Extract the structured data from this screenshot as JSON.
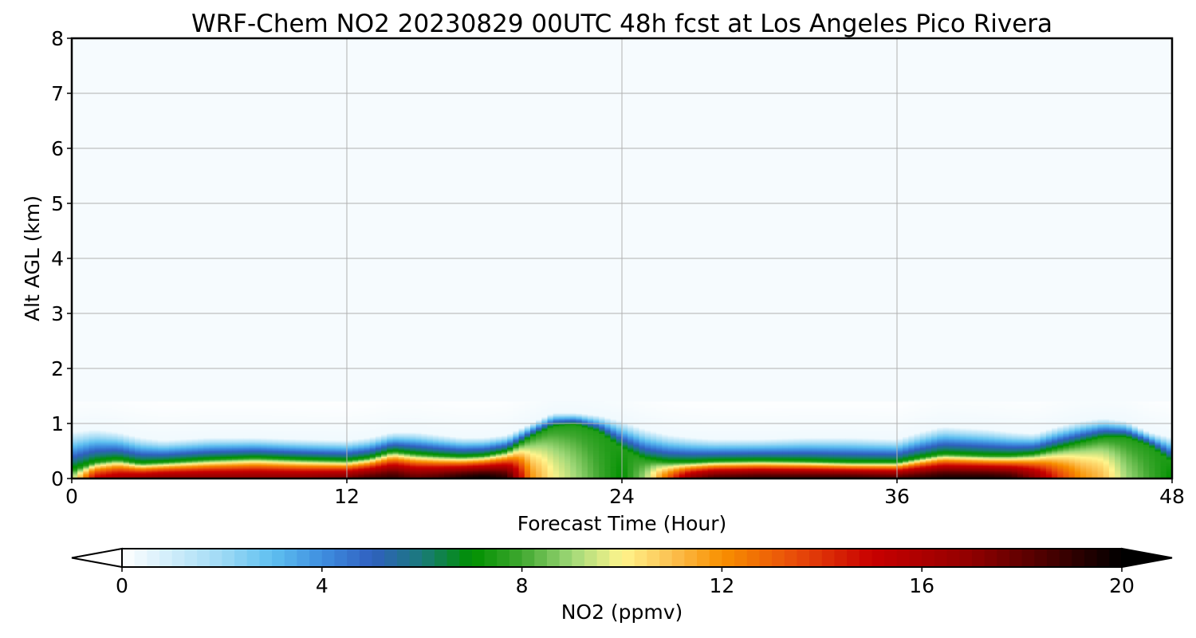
{
  "chart_data": {
    "type": "heatmap",
    "title": "WRF-Chem NO2  20230829 00UTC 48h fcst at Los Angeles Pico Rivera",
    "xlabel": "Forecast Time (Hour)",
    "ylabel": "Alt AGL (km)",
    "xlim": [
      0,
      48
    ],
    "ylim": [
      0,
      8
    ],
    "x_ticks": [
      "0",
      "12",
      "24",
      "36",
      "48"
    ],
    "y_ticks": [
      "0",
      "1",
      "2",
      "3",
      "4",
      "5",
      "6",
      "7",
      "8"
    ],
    "grid": true,
    "colorbar": {
      "label": "NO2  (ppmv)",
      "range": [
        0,
        20
      ],
      "ticks": [
        "0",
        "4",
        "8",
        "12",
        "16",
        "20"
      ],
      "extend": "both",
      "placement": "bottom",
      "stops": [
        [
          0,
          "#ffffff"
        ],
        [
          2,
          "#9fdaf5"
        ],
        [
          3,
          "#5fc0f0"
        ],
        [
          4,
          "#3f8fe0"
        ],
        [
          5,
          "#3060c0"
        ],
        [
          6,
          "#1a7a7a"
        ],
        [
          7,
          "#009000"
        ],
        [
          8,
          "#40a830"
        ],
        [
          9,
          "#a0d878"
        ],
        [
          10,
          "#fff48c"
        ],
        [
          11,
          "#fcc050"
        ],
        [
          12,
          "#f89000"
        ],
        [
          13.5,
          "#e84a0a"
        ],
        [
          15,
          "#c80000"
        ],
        [
          17,
          "#900000"
        ],
        [
          18.5,
          "#4a0000"
        ],
        [
          20,
          "#000000"
        ]
      ]
    },
    "profile": {
      "hours": [
        0,
        1,
        2,
        3,
        4,
        6,
        8,
        10,
        12,
        13,
        14,
        15,
        16,
        17,
        18,
        19,
        20,
        21,
        22,
        23,
        24,
        25,
        26,
        27,
        28,
        30,
        32,
        34,
        36,
        37,
        38,
        40,
        41,
        42,
        43,
        44,
        45,
        46,
        47,
        48
      ],
      "surface_no2": [
        9,
        15,
        16,
        16.5,
        17,
        17,
        17,
        17,
        17.5,
        18.5,
        19,
        18,
        18.5,
        19.5,
        20,
        19,
        12,
        10,
        9,
        8,
        7,
        9,
        13,
        17,
        18.5,
        19,
        19,
        19,
        18.5,
        19,
        19.5,
        19.5,
        19,
        17,
        14,
        12,
        11,
        9,
        8,
        7
      ],
      "layer_top_km": [
        0.85,
        0.9,
        0.85,
        0.75,
        0.7,
        0.75,
        0.75,
        0.72,
        0.7,
        0.75,
        0.85,
        0.85,
        0.8,
        0.75,
        0.75,
        0.8,
        1.0,
        1.2,
        1.2,
        1.15,
        1.05,
        0.9,
        0.8,
        0.75,
        0.72,
        0.72,
        0.75,
        0.75,
        0.72,
        0.85,
        0.95,
        0.9,
        0.85,
        0.82,
        0.95,
        1.05,
        1.1,
        1.05,
        0.85,
        0.75
      ],
      "mixing_height_km": [
        0.15,
        0.3,
        0.35,
        0.28,
        0.3,
        0.35,
        0.38,
        0.35,
        0.33,
        0.38,
        0.5,
        0.45,
        0.42,
        0.4,
        0.42,
        0.5,
        0.75,
        0.95,
        0.98,
        0.85,
        0.55,
        0.35,
        0.3,
        0.3,
        0.32,
        0.33,
        0.32,
        0.3,
        0.3,
        0.38,
        0.45,
        0.42,
        0.42,
        0.45,
        0.55,
        0.65,
        0.75,
        0.75,
        0.6,
        0.3
      ]
    }
  }
}
